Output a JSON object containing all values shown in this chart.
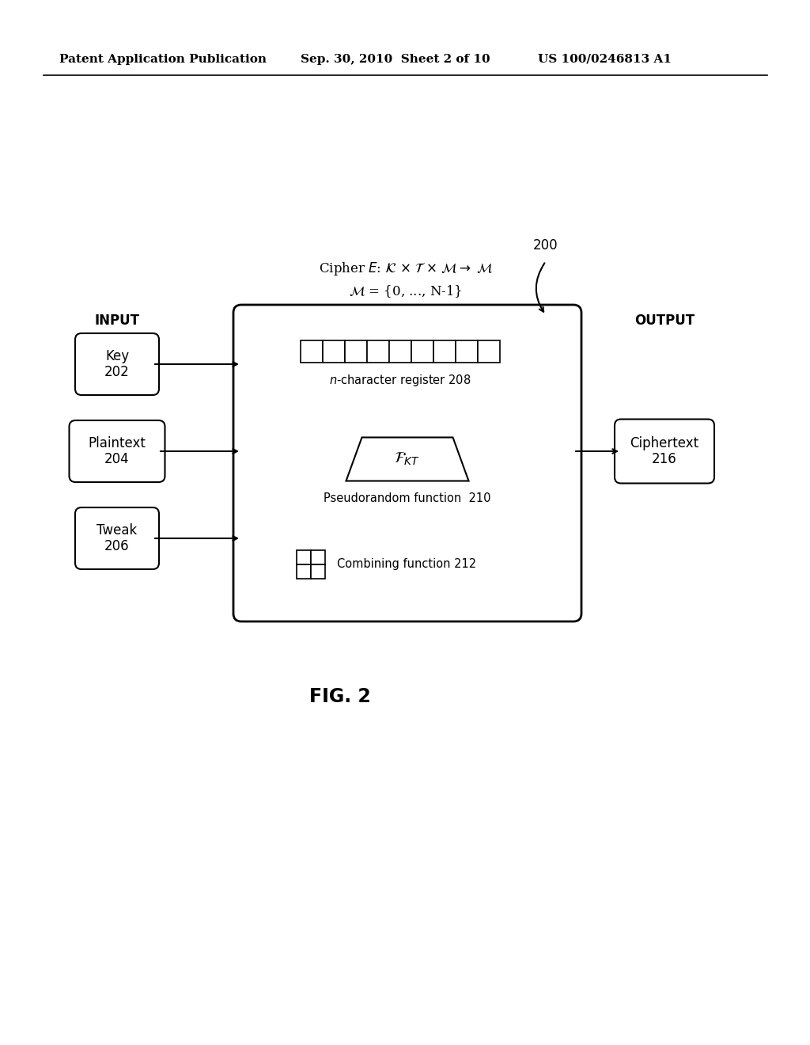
{
  "bg_color": "#ffffff",
  "header_left": "Patent Application Publication",
  "header_mid": "Sep. 30, 2010  Sheet 2 of 10",
  "header_right": "US 100/0246813 A1",
  "fig_label": "FIG. 2",
  "diagram_label": "200",
  "input_label": "INPUT",
  "output_label": "OUTPUT",
  "box_key_label": "Key\n202",
  "box_plaintext_label": "Plaintext\n204",
  "box_tweak_label": "Tweak\n206",
  "box_ciphertext_label": "Ciphertext\n216",
  "register_label": "n-character register 208",
  "prf_label": "Pseudorandom function  210",
  "combine_label": "Combining function 212",
  "n_register_cells": 9
}
